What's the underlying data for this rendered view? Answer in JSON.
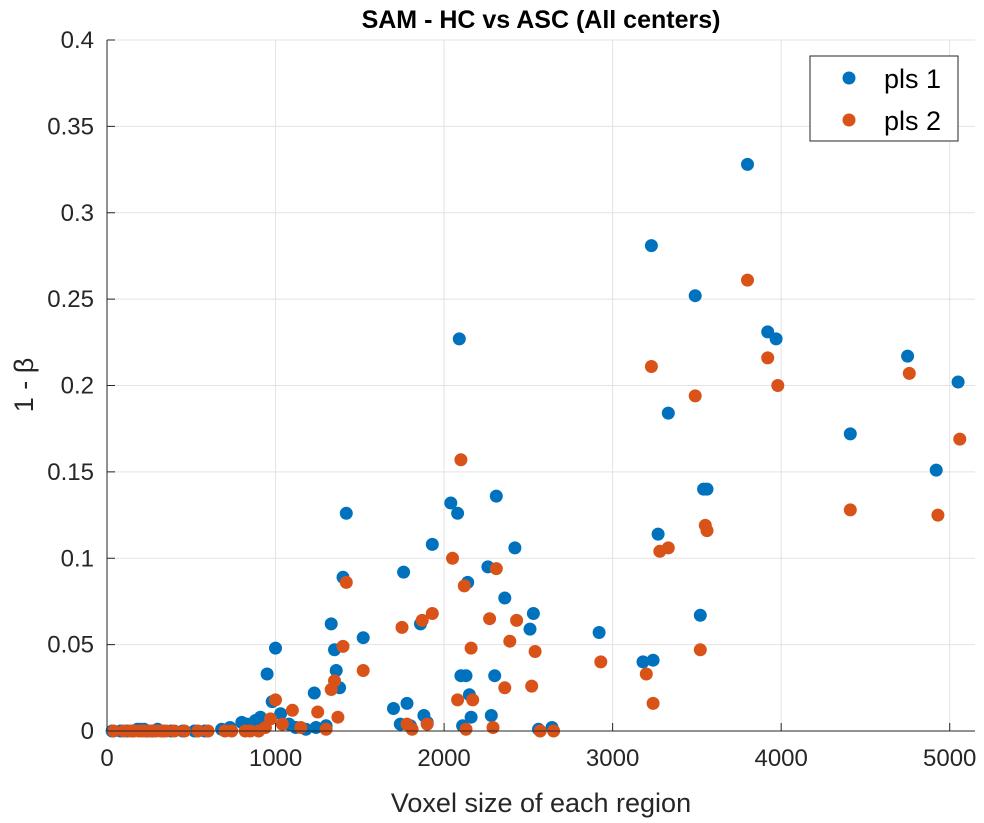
{
  "chart_data": {
    "type": "scatter",
    "title": "SAM - HC vs ASC (All centers)",
    "xlabel": "Voxel size of each region",
    "ylabel": "1 - β",
    "xlim": [
      0,
      5150
    ],
    "ylim": [
      0,
      0.4
    ],
    "xticks": [
      0,
      1000,
      2000,
      3000,
      4000,
      5000
    ],
    "yticks": [
      0,
      0.05,
      0.1,
      0.15,
      0.2,
      0.25,
      0.3,
      0.35,
      0.4
    ],
    "xtick_labels": [
      "0",
      "1000",
      "2000",
      "3000",
      "4000",
      "5000"
    ],
    "ytick_labels": [
      "0",
      "0.05",
      "0.1",
      "0.15",
      "0.2",
      "0.25",
      "0.3",
      "0.35",
      "0.4"
    ],
    "grid": true,
    "legend_position": "top-right",
    "series": [
      {
        "name": "pls 1",
        "color": "#0072BD",
        "x": [
          30,
          80,
          120,
          150,
          180,
          200,
          220,
          240,
          270,
          300,
          330,
          380,
          450,
          520,
          580,
          680,
          730,
          800,
          830,
          880,
          910,
          950,
          980,
          1000,
          1030,
          1080,
          1120,
          1180,
          1230,
          1240,
          1300,
          1330,
          1350,
          1360,
          1380,
          1400,
          1420,
          1520,
          1700,
          1740,
          1760,
          1780,
          1800,
          1860,
          1880,
          1900,
          1930,
          2040,
          2080,
          2090,
          2100,
          2110,
          2130,
          2140,
          2150,
          2160,
          2260,
          2280,
          2300,
          2310,
          2360,
          2420,
          2510,
          2530,
          2560,
          2640,
          2920,
          3180,
          3230,
          3240,
          3270,
          3330,
          3490,
          3520,
          3540,
          3560,
          3800,
          3920,
          3970,
          4410,
          4750,
          4920,
          5050
        ],
        "y": [
          0,
          0,
          0,
          0,
          0.001,
          0.001,
          0.001,
          0,
          0,
          0.001,
          0,
          0,
          0,
          0,
          0,
          0.001,
          0.002,
          0.005,
          0.004,
          0.006,
          0.008,
          0.033,
          0.017,
          0.048,
          0.01,
          0.004,
          0.002,
          0.001,
          0.022,
          0.002,
          0.003,
          0.062,
          0.047,
          0.035,
          0.025,
          0.089,
          0.126,
          0.054,
          0.013,
          0.004,
          0.092,
          0.016,
          0.003,
          0.062,
          0.009,
          0.005,
          0.108,
          0.132,
          0.126,
          0.227,
          0.032,
          0.003,
          0.032,
          0.086,
          0.021,
          0.008,
          0.095,
          0.009,
          0.032,
          0.136,
          0.077,
          0.106,
          0.059,
          0.068,
          0.001,
          0.002,
          0.057,
          0.04,
          0.281,
          0.041,
          0.114,
          0.184,
          0.252,
          0.067,
          0.14,
          0.14,
          0.328,
          0.231,
          0.227,
          0.172,
          0.217,
          0.151,
          0.202
        ]
      },
      {
        "name": "pls 2",
        "color": "#D95319",
        "x": [
          40,
          100,
          140,
          160,
          190,
          210,
          230,
          260,
          290,
          320,
          350,
          400,
          460,
          540,
          600,
          700,
          740,
          820,
          850,
          900,
          940,
          970,
          1000,
          1040,
          1100,
          1150,
          1250,
          1300,
          1330,
          1350,
          1370,
          1400,
          1420,
          1520,
          1750,
          1780,
          1810,
          1870,
          1900,
          1930,
          2050,
          2080,
          2100,
          2120,
          2130,
          2160,
          2170,
          2270,
          2290,
          2310,
          2360,
          2390,
          2430,
          2520,
          2540,
          2570,
          2650,
          2930,
          3200,
          3230,
          3240,
          3280,
          3330,
          3490,
          3520,
          3550,
          3560,
          3800,
          3920,
          3980,
          4410,
          4760,
          4930,
          5060
        ],
        "y": [
          0,
          0,
          0,
          0,
          0,
          0,
          0,
          0,
          0,
          0,
          0,
          0,
          0,
          0,
          0,
          0,
          0,
          0,
          0,
          0,
          0.002,
          0.007,
          0.018,
          0.004,
          0.012,
          0.002,
          0.011,
          0.001,
          0.024,
          0.029,
          0.008,
          0.049,
          0.086,
          0.035,
          0.06,
          0.004,
          0.001,
          0.064,
          0.004,
          0.068,
          0.1,
          0.018,
          0.157,
          0.084,
          0.001,
          0.048,
          0.018,
          0.065,
          0.002,
          0.094,
          0.025,
          0.052,
          0.064,
          0.026,
          0.046,
          0,
          0,
          0.04,
          0.033,
          0.211,
          0.016,
          0.104,
          0.106,
          0.194,
          0.047,
          0.119,
          0.116,
          0.261,
          0.216,
          0.2,
          0.128,
          0.207,
          0.125,
          0.169
        ]
      }
    ]
  }
}
